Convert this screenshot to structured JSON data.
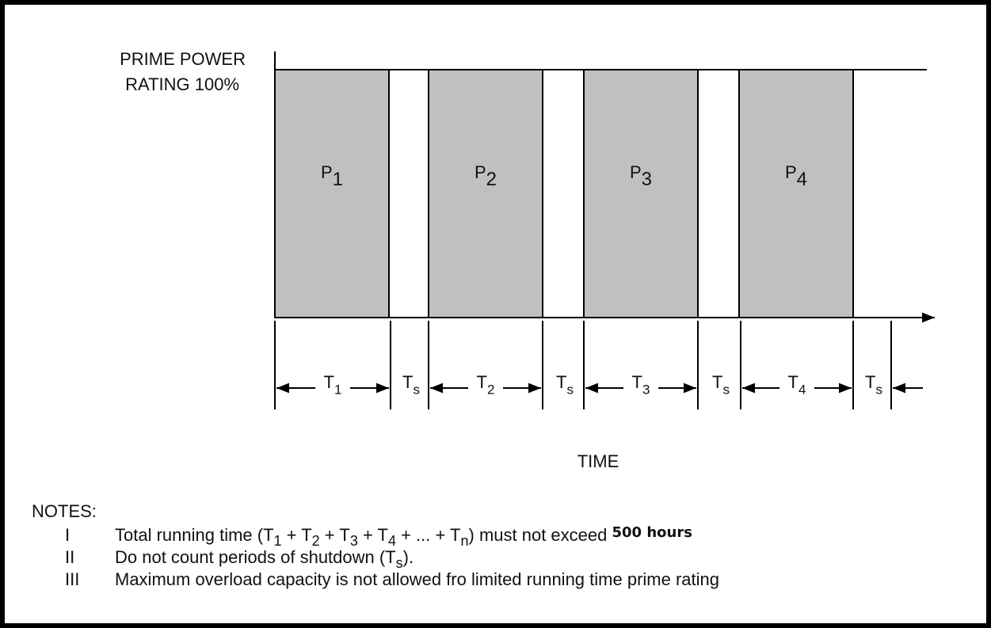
{
  "y_label": [
    "PRIME POWER",
    "RATING 100%"
  ],
  "blocks": [
    {
      "label": "P",
      "sub": "1"
    },
    {
      "label": "P",
      "sub": "2"
    },
    {
      "label": "P",
      "sub": "3"
    },
    {
      "label": "P",
      "sub": "4"
    }
  ],
  "periods": [
    {
      "label": "T",
      "sub": "1"
    },
    {
      "label": "T",
      "sub": "s"
    },
    {
      "label": "T",
      "sub": "2"
    },
    {
      "label": "T",
      "sub": "s"
    },
    {
      "label": "T",
      "sub": "3"
    },
    {
      "label": "T",
      "sub": "s"
    },
    {
      "label": "T",
      "sub": "4"
    },
    {
      "label": "T",
      "sub": "s"
    }
  ],
  "x_label": "TIME",
  "notes": {
    "title": "NOTES:",
    "items": [
      {
        "num": "I",
        "text": [
          "Total running time (T",
          {
            "sub": "1"
          },
          " + T",
          {
            "sub": "2"
          },
          " + T",
          {
            "sub": "3"
          },
          " + T",
          {
            "sub": "4"
          },
          " + ... + T",
          {
            "sub": "n"
          },
          ") must not exceed ",
          {
            "bold": "500 hours"
          }
        ]
      },
      {
        "num": "II",
        "text": [
          "Do not count periods of shutdown (T",
          {
            "sub": "s"
          },
          ")."
        ]
      },
      {
        "num": "III",
        "text": [
          "Maximum overload capacity is not allowed fro limited running time prime rating"
        ]
      }
    ]
  }
}
